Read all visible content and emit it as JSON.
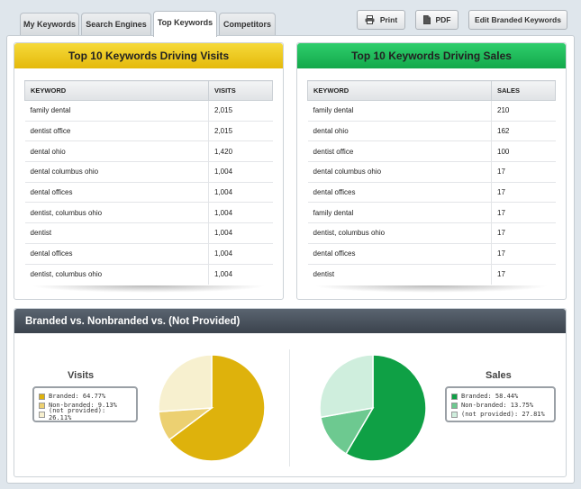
{
  "tabs": [
    {
      "label": "My Keywords",
      "active": false
    },
    {
      "label": "Search Engines",
      "active": false
    },
    {
      "label": "Top Keywords",
      "active": true
    },
    {
      "label": "Competitors",
      "active": false
    }
  ],
  "toolbar": {
    "print_label": "Print",
    "pdf_label": "PDF",
    "edit_label": "Edit Branded Keywords"
  },
  "visits_panel": {
    "title": "Top 10 Keywords Driving Visits",
    "col_keyword": "KEYWORD",
    "col_value": "VISITS",
    "rows": [
      {
        "keyword": "family dental",
        "value": "2,015"
      },
      {
        "keyword": " dentist office",
        "value": "2,015"
      },
      {
        "keyword": "dental ohio",
        "value": "1,420"
      },
      {
        "keyword": "dental columbus ohio",
        "value": "1,004"
      },
      {
        "keyword": "dental offices",
        "value": "1,004"
      },
      {
        "keyword": "dentist, columbus ohio",
        "value": "1,004"
      },
      {
        "keyword": " dentist",
        "value": "1,004"
      },
      {
        "keyword": "dental offices",
        "value": "1,004"
      },
      {
        "keyword": "dentist, columbus ohio",
        "value": "1,004"
      }
    ]
  },
  "sales_panel": {
    "title": "Top 10 Keywords Driving Sales",
    "col_keyword": "KEYWORD",
    "col_value": "SALES",
    "rows": [
      {
        "keyword": "family dental",
        "value": "210"
      },
      {
        "keyword": " dental ohio",
        "value": "162"
      },
      {
        "keyword": "dentist office",
        "value": "100"
      },
      {
        "keyword": " dental columbus ohio",
        "value": "17"
      },
      {
        "keyword": " dental offices",
        "value": "17"
      },
      {
        "keyword": "family dental",
        "value": "17"
      },
      {
        "keyword": "dentist, columbus ohio",
        "value": "17"
      },
      {
        "keyword": "dental offices",
        "value": "17"
      },
      {
        "keyword": " dentist",
        "value": "17"
      }
    ]
  },
  "branded_section": {
    "title": "Branded vs. Nonbranded vs. (Not Provided)"
  },
  "chart_data": [
    {
      "type": "pie",
      "title": "Visits",
      "categories": [
        "Branded",
        "Non-branded",
        "(not provided)"
      ],
      "values": [
        64.77,
        9.13,
        26.11
      ],
      "legend": [
        "Branded: 64.77%",
        "Non-branded: 9.13%",
        "(not provided): 26.11%"
      ],
      "colors": [
        "#deb20c",
        "#ecd071",
        "#f7f0cf"
      ],
      "legend_position": "left"
    },
    {
      "type": "pie",
      "title": "Sales",
      "categories": [
        "Branded",
        "Non-branded",
        "(not provided)"
      ],
      "values": [
        58.44,
        13.75,
        27.81
      ],
      "legend": [
        "Branded: 58.44%",
        "Non-branded: 13.75%",
        "(not provided): 27.81%"
      ],
      "colors": [
        "#0fa045",
        "#6dc990",
        "#cfeedd"
      ],
      "legend_position": "right"
    }
  ],
  "icons": {
    "print": "printer-icon",
    "pdf": "document-icon"
  }
}
